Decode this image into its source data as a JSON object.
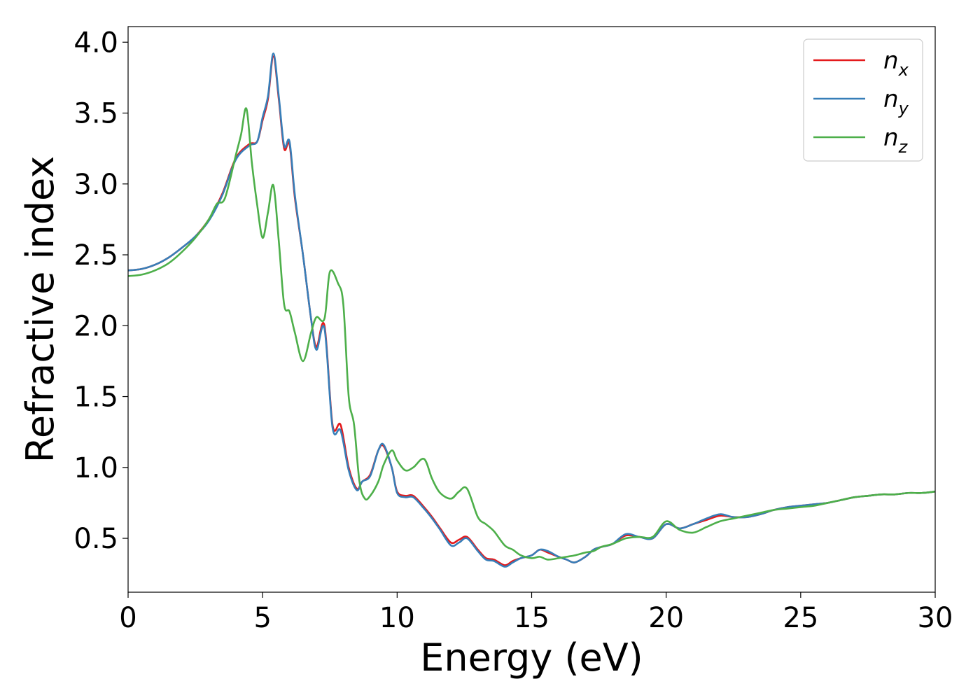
{
  "chart_data": {
    "type": "line",
    "title": "",
    "xlabel": "Energy (eV)",
    "ylabel": "Refractive index",
    "xlim": [
      0,
      30
    ],
    "ylim": [
      0.12,
      4.11
    ],
    "xticks": [
      0,
      5,
      10,
      15,
      20,
      25,
      30
    ],
    "xtick_labels": [
      "0",
      "5",
      "10",
      "15",
      "20",
      "25",
      "30"
    ],
    "yticks": [
      0.5,
      1.0,
      1.5,
      2.0,
      2.5,
      3.0,
      3.5,
      4.0
    ],
    "ytick_labels": [
      "0.5",
      "1.0",
      "1.5",
      "2.0",
      "2.5",
      "3.0",
      "3.5",
      "4.0"
    ],
    "grid": false,
    "legend_position": "top-right",
    "series": [
      {
        "name": "n_x",
        "label_base": "n",
        "label_sub": "x",
        "color": "#e41a1c",
        "x": [
          0,
          0.5,
          1,
          1.5,
          2,
          2.5,
          3,
          3.5,
          4,
          4.5,
          4.8,
          5,
          5.2,
          5.4,
          5.6,
          5.8,
          6,
          6.2,
          6.5,
          6.8,
          7,
          7.3,
          7.6,
          7.9,
          8.2,
          8.5,
          8.7,
          9,
          9.3,
          9.5,
          9.8,
          10,
          10.3,
          10.6,
          11,
          11.3,
          11.6,
          12,
          12.3,
          12.6,
          13,
          13.3,
          13.6,
          14,
          14.3,
          14.6,
          15,
          15.3,
          15.6,
          16,
          16.3,
          16.6,
          17,
          17.3,
          17.6,
          18,
          18.5,
          19,
          19.5,
          20,
          20.5,
          21,
          21.5,
          22,
          22.5,
          23,
          23.5,
          24,
          24.5,
          25,
          25.5,
          26,
          26.5,
          27,
          27.5,
          28,
          28.5,
          29,
          29.5,
          30
        ],
        "y": [
          2.39,
          2.4,
          2.43,
          2.48,
          2.55,
          2.63,
          2.75,
          2.93,
          3.18,
          3.28,
          3.3,
          3.45,
          3.6,
          3.9,
          3.6,
          3.25,
          3.28,
          2.9,
          2.5,
          2.05,
          1.85,
          2.0,
          1.3,
          1.3,
          1.0,
          0.85,
          0.9,
          0.95,
          1.12,
          1.15,
          1.0,
          0.83,
          0.8,
          0.8,
          0.72,
          0.65,
          0.57,
          0.47,
          0.49,
          0.51,
          0.42,
          0.36,
          0.35,
          0.31,
          0.34,
          0.36,
          0.38,
          0.42,
          0.4,
          0.37,
          0.35,
          0.33,
          0.37,
          0.42,
          0.44,
          0.46,
          0.52,
          0.51,
          0.5,
          0.6,
          0.57,
          0.6,
          0.63,
          0.66,
          0.65,
          0.65,
          0.67,
          0.7,
          0.72,
          0.73,
          0.74,
          0.75,
          0.77,
          0.79,
          0.8,
          0.81,
          0.81,
          0.82,
          0.82,
          0.83
        ]
      },
      {
        "name": "n_y",
        "label_base": "n",
        "label_sub": "y",
        "color": "#377eb8",
        "x": [
          0,
          0.5,
          1,
          1.5,
          2,
          2.5,
          3,
          3.5,
          4,
          4.5,
          4.8,
          5,
          5.2,
          5.4,
          5.6,
          5.8,
          6,
          6.2,
          6.5,
          6.8,
          7,
          7.3,
          7.6,
          7.9,
          8.2,
          8.5,
          8.7,
          9,
          9.3,
          9.5,
          9.8,
          10,
          10.3,
          10.6,
          11,
          11.3,
          11.6,
          12,
          12.3,
          12.6,
          13,
          13.3,
          13.6,
          14,
          14.3,
          14.6,
          15,
          15.3,
          15.6,
          16,
          16.3,
          16.6,
          17,
          17.3,
          17.6,
          18,
          18.5,
          19,
          19.5,
          20,
          20.5,
          21,
          21.5,
          22,
          22.5,
          23,
          23.5,
          24,
          24.5,
          25,
          25.5,
          26,
          26.5,
          27,
          27.5,
          28,
          28.5,
          29,
          29.5,
          30
        ],
        "y": [
          2.39,
          2.4,
          2.43,
          2.48,
          2.55,
          2.63,
          2.74,
          2.92,
          3.17,
          3.27,
          3.3,
          3.47,
          3.62,
          3.92,
          3.62,
          3.27,
          3.3,
          2.92,
          2.5,
          2.05,
          1.83,
          1.98,
          1.28,
          1.26,
          0.98,
          0.84,
          0.9,
          0.94,
          1.12,
          1.16,
          1.0,
          0.82,
          0.79,
          0.79,
          0.71,
          0.64,
          0.56,
          0.45,
          0.47,
          0.5,
          0.41,
          0.35,
          0.34,
          0.3,
          0.33,
          0.36,
          0.38,
          0.42,
          0.41,
          0.37,
          0.35,
          0.33,
          0.37,
          0.42,
          0.44,
          0.46,
          0.53,
          0.51,
          0.5,
          0.6,
          0.57,
          0.6,
          0.64,
          0.67,
          0.65,
          0.65,
          0.67,
          0.7,
          0.72,
          0.73,
          0.74,
          0.75,
          0.77,
          0.79,
          0.8,
          0.81,
          0.81,
          0.82,
          0.82,
          0.83
        ]
      },
      {
        "name": "n_z",
        "label_base": "n",
        "label_sub": "z",
        "color": "#4daf4a",
        "x": [
          0,
          0.5,
          1,
          1.5,
          2,
          2.5,
          3,
          3.3,
          3.6,
          4,
          4.2,
          4.4,
          4.6,
          4.8,
          5,
          5.2,
          5.4,
          5.6,
          5.8,
          6,
          6.2,
          6.5,
          6.8,
          7,
          7.3,
          7.5,
          7.8,
          8,
          8.2,
          8.4,
          8.6,
          8.8,
          9,
          9.3,
          9.5,
          9.8,
          10,
          10.3,
          10.6,
          11,
          11.3,
          11.6,
          12,
          12.3,
          12.6,
          13,
          13.3,
          13.6,
          14,
          14.3,
          14.6,
          15,
          15.3,
          15.6,
          16,
          16.3,
          16.6,
          17,
          17.3,
          17.6,
          18,
          18.5,
          19,
          19.5,
          20,
          20.5,
          21,
          21.5,
          22,
          22.5,
          23,
          23.5,
          24,
          24.5,
          25,
          25.5,
          26,
          26.5,
          27,
          27.5,
          28,
          28.5,
          29,
          29.5,
          30
        ],
        "y": [
          2.35,
          2.36,
          2.39,
          2.44,
          2.52,
          2.62,
          2.75,
          2.86,
          2.9,
          3.2,
          3.35,
          3.53,
          3.15,
          2.85,
          2.62,
          2.8,
          2.99,
          2.6,
          2.15,
          2.1,
          1.95,
          1.75,
          1.95,
          2.06,
          2.05,
          2.38,
          2.3,
          2.15,
          1.5,
          1.3,
          0.9,
          0.78,
          0.8,
          0.9,
          1.02,
          1.12,
          1.05,
          0.98,
          1.0,
          1.06,
          0.92,
          0.82,
          0.78,
          0.83,
          0.85,
          0.65,
          0.6,
          0.55,
          0.45,
          0.42,
          0.38,
          0.36,
          0.37,
          0.35,
          0.36,
          0.37,
          0.38,
          0.4,
          0.41,
          0.44,
          0.46,
          0.5,
          0.51,
          0.51,
          0.62,
          0.56,
          0.54,
          0.58,
          0.62,
          0.64,
          0.66,
          0.68,
          0.7,
          0.71,
          0.72,
          0.73,
          0.75,
          0.77,
          0.79,
          0.8,
          0.81,
          0.81,
          0.82,
          0.82,
          0.83
        ]
      }
    ]
  }
}
